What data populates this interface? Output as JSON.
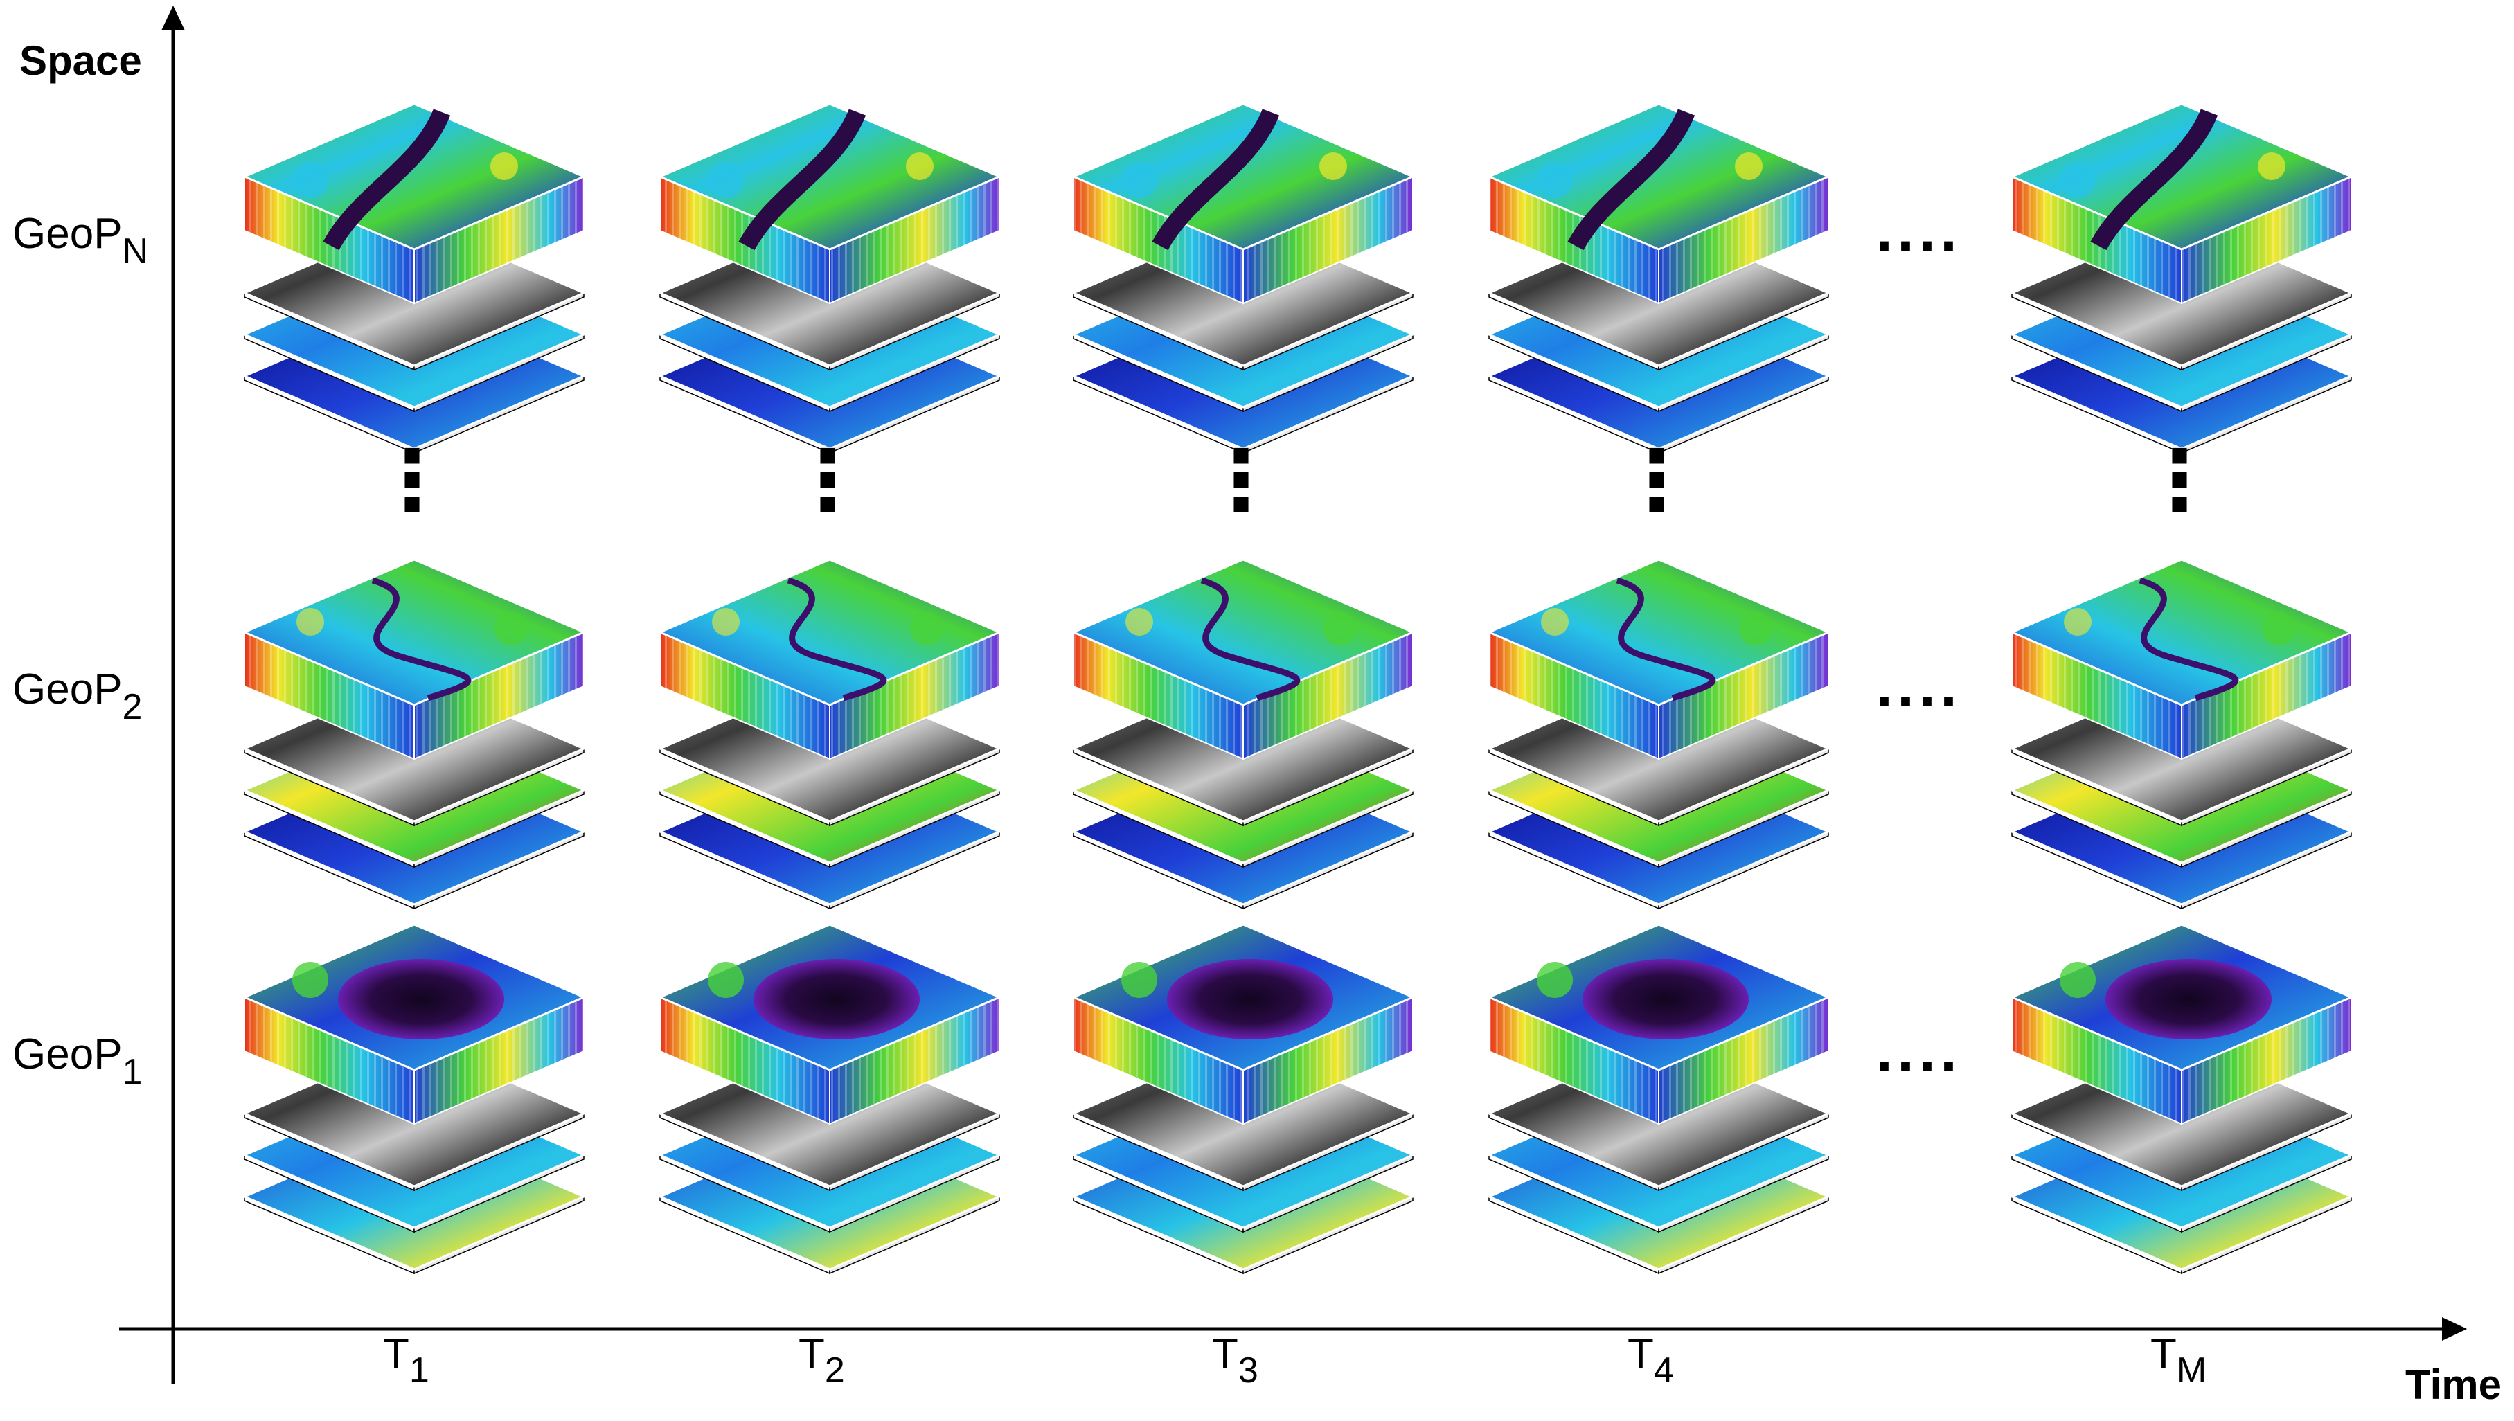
{
  "axes": {
    "y_label": "Space",
    "x_label": "Time"
  },
  "rows": [
    {
      "id": "N",
      "label_base": "GeoP",
      "label_sub": "N",
      "scene": "river",
      "bottom_layer": "cool"
    },
    {
      "id": "2",
      "label_base": "GeoP",
      "label_sub": "2",
      "scene": "meander",
      "bottom_layer": "warm"
    },
    {
      "id": "1",
      "label_base": "GeoP",
      "label_sub": "1",
      "scene": "lake",
      "bottom_layer": "gradient"
    }
  ],
  "columns": [
    {
      "label_base": "T",
      "label_sub": "1"
    },
    {
      "label_base": "T",
      "label_sub": "2"
    },
    {
      "label_base": "T",
      "label_sub": "3"
    },
    {
      "label_base": "T",
      "label_sub": "4"
    },
    {
      "label_base": "T",
      "label_sub": "M"
    }
  ],
  "ellipsis": {
    "horizontal": "....",
    "vertical": "⋮"
  },
  "colors": {
    "axis": "#000000",
    "jet_dark_blue": "#0a0a8c",
    "jet_blue": "#1f3fd6",
    "jet_cyan": "#27c3e6",
    "jet_green": "#49d23a",
    "jet_yellow": "#f2e72b",
    "jet_red": "#e8301c",
    "water_purple": "#3c0f6b",
    "grayscale_dark": "#2b2b2b",
    "grayscale_light": "#c8c8c8"
  }
}
